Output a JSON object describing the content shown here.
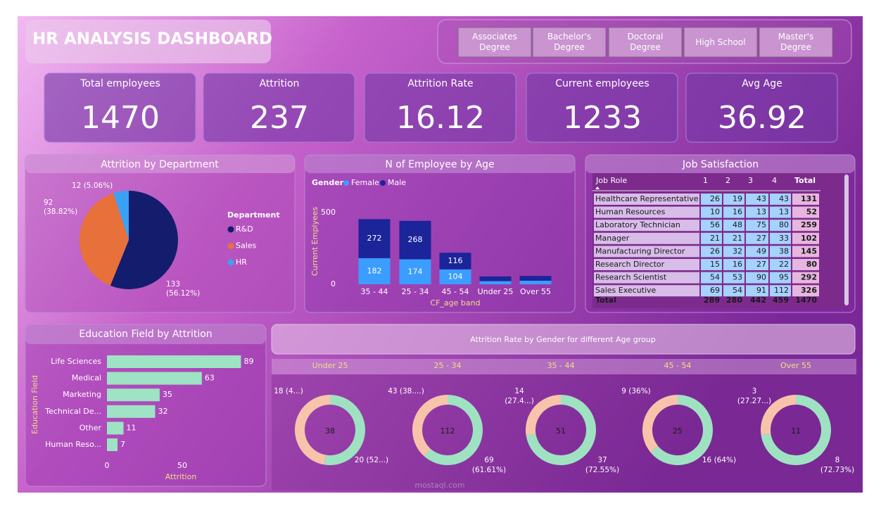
{
  "header": {
    "title": "HR ANALYSIS DASHBOARD"
  },
  "filters": [
    "Associates Degree",
    "Bachelor's Degree",
    "Doctoral Degree",
    "High School",
    "Master's Degree"
  ],
  "kpis": [
    {
      "label": "Total employees",
      "value": 1470
    },
    {
      "label": "Attrition",
      "value": 237
    },
    {
      "label": "Attrition Rate",
      "value": 16.12
    },
    {
      "label": "Current employees",
      "value": 1233
    },
    {
      "label": "Avg Age",
      "value": 36.92
    }
  ],
  "table": {
    "title": "Job Satisfaction",
    "columns": [
      "Job Role",
      "1",
      "2",
      "3",
      "4",
      "Total"
    ],
    "rows": [
      [
        "Healthcare Representative",
        26,
        19,
        43,
        43,
        131
      ],
      [
        "Human Resources",
        10,
        16,
        13,
        13,
        52
      ],
      [
        "Laboratory Technician",
        56,
        48,
        75,
        80,
        259
      ],
      [
        "Manager",
        21,
        21,
        27,
        33,
        102
      ],
      [
        "Manufacturing Director",
        26,
        32,
        49,
        38,
        145
      ],
      [
        "Research Director",
        15,
        16,
        27,
        22,
        80
      ],
      [
        "Research Scientist",
        54,
        53,
        90,
        95,
        292
      ],
      [
        "Sales Executive",
        69,
        54,
        91,
        112,
        326
      ]
    ],
    "total_row": [
      "Total",
      289,
      280,
      442,
      459,
      1470
    ]
  },
  "donut_section": {
    "title": "Attrition Rate by Gender for different Age group"
  },
  "watermark": "mostaql.com",
  "chart_data": [
    {
      "type": "pie",
      "title": "Attrition by Department",
      "legend_title": "Department",
      "categories": [
        "R&D",
        "Sales",
        "HR"
      ],
      "values": [
        133,
        92,
        12
      ],
      "value_labels": [
        "133 (56.12%)",
        "92 (38.82%)",
        "12 (5.06%)"
      ],
      "colors": [
        "#141c6e",
        "#e8703a",
        "#3aa2f5"
      ]
    },
    {
      "type": "stacked_bar",
      "title": "N of Employee by Age",
      "legend_title": "Gender",
      "categories": [
        "35 - 44",
        "25 - 34",
        "45 - 54",
        "Under 25",
        "Over 55"
      ],
      "series": [
        {
          "name": "Female",
          "color": "#3a9dff",
          "values": [
            182,
            174,
            104,
            22,
            25
          ]
        },
        {
          "name": "Male",
          "color": "#1c2499",
          "values": [
            272,
            268,
            116,
            33,
            33
          ]
        }
      ],
      "ylim": [
        0,
        500
      ],
      "yticks": [
        0,
        500
      ],
      "ylabel": "Current Emplyees",
      "xlabel": "CF_age band"
    },
    {
      "type": "hbar",
      "title": "Education Field by Attrition",
      "categories": [
        "Life Sciences",
        "Medical",
        "Marketing",
        "Technical De...",
        "Other",
        "Human Reso..."
      ],
      "values": [
        89,
        63,
        35,
        32,
        11,
        7
      ],
      "color": "#9de3c4",
      "xlim": [
        0,
        100
      ],
      "xticks": [
        0,
        50
      ],
      "xlabel": "Attrition",
      "ylabel": "Education Field"
    },
    {
      "type": "donut",
      "title": "Under 25",
      "total": 38,
      "values": [
        18,
        20
      ],
      "value_labels": [
        "18 (4...)",
        "20 (52...)"
      ],
      "colors": [
        "#f7c4ab",
        "#9fe2c2"
      ]
    },
    {
      "type": "donut",
      "title": "25 - 34",
      "total": 112,
      "values": [
        43,
        69
      ],
      "value_labels": [
        "43 (38....)",
        "69 (61.61%)"
      ],
      "colors": [
        "#f7c4ab",
        "#9fe2c2"
      ]
    },
    {
      "type": "donut",
      "title": "35 - 44",
      "total": 51,
      "values": [
        14,
        37
      ],
      "value_labels": [
        "14 (27.4...)",
        "37 (72.55%)"
      ],
      "colors": [
        "#f7c4ab",
        "#9fe2c2"
      ]
    },
    {
      "type": "donut",
      "title": "45 - 54",
      "total": 25,
      "values": [
        9,
        16
      ],
      "value_labels": [
        "9 (36%)",
        "16 (64%)"
      ],
      "colors": [
        "#f7c4ab",
        "#9fe2c2"
      ]
    },
    {
      "type": "donut",
      "title": "Over 55",
      "total": 11,
      "values": [
        3,
        8
      ],
      "value_labels": [
        "3 (27.27...)",
        "8 (72.73%)"
      ],
      "colors": [
        "#f7c4ab",
        "#9fe2c2"
      ]
    }
  ]
}
